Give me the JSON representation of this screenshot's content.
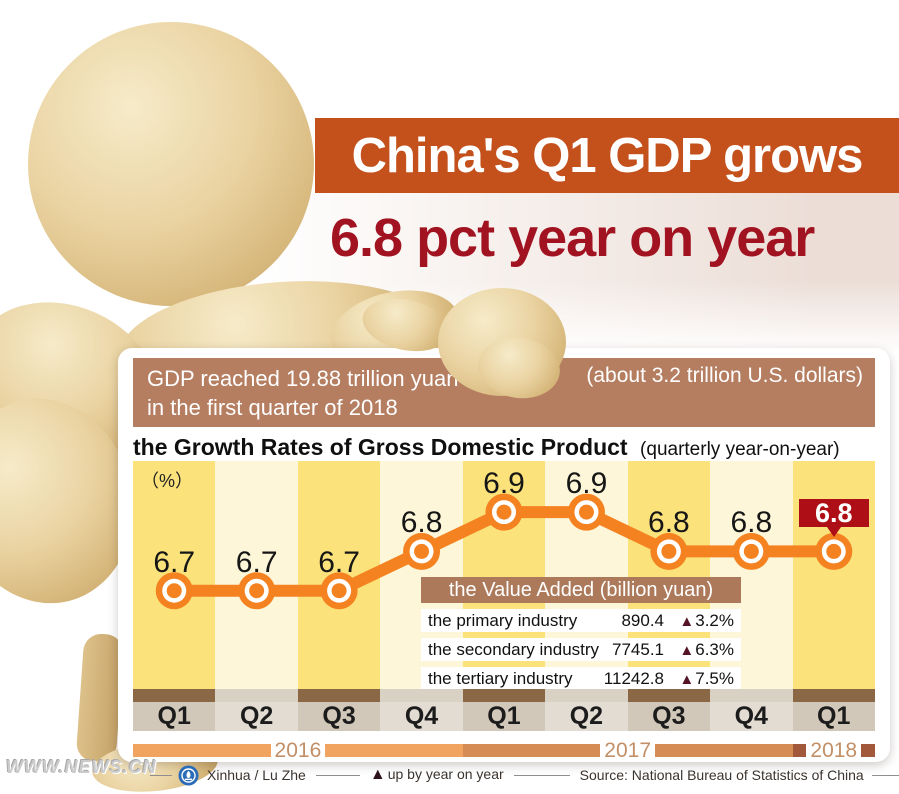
{
  "headline": {
    "line1": "China's Q1 GDP grows",
    "line2": "6.8 pct year on year"
  },
  "gdp_banner": {
    "line1": "GDP reached 19.88 trillion yuan",
    "line2": "in the first quarter of 2018",
    "right": "(about 3.2 trillion U.S. dollars)"
  },
  "chart_header": {
    "title": "the Growth Rates of Gross Domestic Product",
    "subtitle": "(quarterly year-on-year)"
  },
  "chart_data": {
    "type": "line",
    "title": "the Growth Rates of Gross Domestic Product",
    "unit_label": "（%）",
    "categories": [
      "Q1",
      "Q2",
      "Q3",
      "Q4",
      "Q1",
      "Q2",
      "Q3",
      "Q4",
      "Q1"
    ],
    "values": [
      6.7,
      6.7,
      6.7,
      6.8,
      6.9,
      6.9,
      6.8,
      6.8,
      6.8
    ],
    "year_groups": [
      {
        "label": "2016",
        "span": 4,
        "color": "#F0A45F"
      },
      {
        "label": "2017",
        "span": 4,
        "color": "#D68D55"
      },
      {
        "label": "2018",
        "span": 1,
        "color": "#A2593B"
      }
    ],
    "highlight_index": 8,
    "ylim": [
      6.45,
      7.03
    ],
    "grid": false,
    "line_color": "#F58220",
    "badge_color": "#AE0E15",
    "band_colors": [
      "#FBE27B",
      "#FDF6D8"
    ],
    "strip_colors": [
      "#8A6845",
      "#D9D2C4"
    ],
    "qcell_colors": [
      "#D1C8B9",
      "#E2DCD2"
    ],
    "year_text_color": "#C28F66"
  },
  "value_table": {
    "header": "the Value Added (billion yuan)",
    "up_symbol": "▲",
    "triangle_color": "#541426",
    "rows": [
      {
        "name": "the primary industry",
        "value": "890.4",
        "change": "3.2%"
      },
      {
        "name": "the secondary industry",
        "value": "7745.1",
        "change": "6.3%"
      },
      {
        "name": "the tertiary industry",
        "value": "11242.8",
        "change": "7.5%"
      }
    ]
  },
  "footer": {
    "watermark": "WWW.NEWS.CN",
    "credit": "Xinhua / Lu Zhe",
    "legend_symbol": "▲",
    "legend_text": "up by year on year",
    "source": "Source: National Bureau of Statistics of China"
  },
  "colors": {
    "accent_orange": "#C4511C",
    "headline_red": "#A11320",
    "banner_brown": "#B57E61",
    "table_header_brown": "#AC7A5B"
  }
}
